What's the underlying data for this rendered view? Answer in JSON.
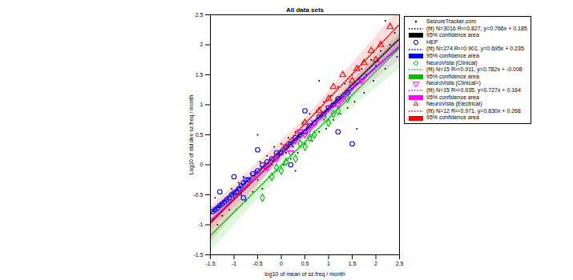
{
  "chart_data": {
    "type": "scatter",
    "title": "All data sets",
    "xlabel": "log10 of mean of sz.freq / month",
    "ylabel": "Log10 of std dev sz.freq / month",
    "xlim": [
      -1.5,
      2.5
    ],
    "ylim": [
      -1.5,
      2.5
    ],
    "xticks": [
      -1.5,
      -1,
      -0.5,
      0,
      0.5,
      1,
      1.5,
      2,
      2.5
    ],
    "yticks": [
      -1.5,
      -1,
      -0.5,
      0,
      0.5,
      1,
      1.5,
      2,
      2.5
    ],
    "grid": false,
    "legend": "right",
    "series": [
      {
        "name": "SeizureTracker.com",
        "type": "scatter",
        "marker": "point",
        "color": "#000000",
        "x": [
          -1.45,
          -1.4,
          -1.35,
          -1.3,
          -1.25,
          -1.2,
          -1.1,
          -1.05,
          -1.0,
          -0.95,
          -0.9,
          -0.85,
          -0.8,
          -0.75,
          -0.7,
          -0.65,
          -0.6,
          -0.55,
          -0.5,
          -0.45,
          -0.4,
          -0.35,
          -0.3,
          -0.25,
          -0.2,
          -0.15,
          -0.1,
          -0.05,
          0.0,
          0.05,
          0.1,
          0.15,
          0.2,
          0.25,
          0.3,
          0.35,
          0.4,
          0.45,
          0.5,
          0.55,
          0.6,
          0.65,
          0.7,
          0.75,
          0.8,
          0.85,
          0.9,
          0.95,
          1.0,
          1.05,
          1.1,
          1.15,
          1.2,
          1.25,
          1.3,
          1.35,
          1.4,
          1.45,
          1.5,
          1.55,
          1.6,
          1.7,
          1.75,
          1.8,
          1.9,
          1.95,
          2.0,
          2.1,
          2.2,
          2.3,
          2.4,
          2.45,
          -1.5,
          0.3,
          1.6,
          -0.5,
          0.8,
          2.2
        ],
        "values": [
          -0.9,
          -0.55,
          -1.0,
          -0.7,
          -0.85,
          -0.6,
          -0.75,
          -0.4,
          -0.55,
          -0.75,
          -0.3,
          -0.5,
          -0.2,
          -0.6,
          -0.35,
          -0.15,
          -0.45,
          -0.1,
          -0.25,
          0.05,
          -0.4,
          -0.05,
          0.15,
          -0.2,
          0.0,
          0.3,
          -0.1,
          0.15,
          0.35,
          0.0,
          0.2,
          0.45,
          0.1,
          0.3,
          0.55,
          0.2,
          0.45,
          0.7,
          0.35,
          0.6,
          0.85,
          0.4,
          0.65,
          0.9,
          0.55,
          0.8,
          1.05,
          0.6,
          0.9,
          1.15,
          0.75,
          1.0,
          1.3,
          0.85,
          1.1,
          1.35,
          0.95,
          1.2,
          1.5,
          1.05,
          1.35,
          1.6,
          1.2,
          1.5,
          1.75,
          1.4,
          1.65,
          1.9,
          1.6,
          2.0,
          2.2,
          1.8,
          -0.7,
          -0.1,
          0.6,
          0.5,
          1.4,
          2.4
        ]
      },
      {
        "name": "(fit) N=3016 R²=0.827, y=0.766x + 0.185",
        "type": "line",
        "line_style": "dotted",
        "color": "#000000",
        "x": [
          -1.5,
          2.5
        ],
        "values": [
          -0.964,
          2.1
        ]
      },
      {
        "name": "95% confidence area",
        "type": "area",
        "color": "#000000",
        "x": [
          -1.5,
          0.5,
          2.5
        ],
        "lower": [
          -1.0,
          0.55,
          2.06
        ],
        "upper": [
          -0.93,
          0.585,
          2.14
        ]
      },
      {
        "name": "HEP",
        "type": "scatter",
        "marker": "circle",
        "color": "#0000ff",
        "x": [
          -1.45,
          -1.4,
          -1.35,
          -1.3,
          -1.25,
          -1.2,
          -1.15,
          -1.1,
          -1.05,
          -1.0,
          -0.95,
          -0.9,
          -0.85,
          -0.8,
          -0.75,
          -0.7,
          -0.6,
          -0.5,
          -0.4,
          -0.3,
          -0.2,
          -0.1,
          0.0,
          0.1,
          0.2,
          0.3,
          0.4,
          0.5,
          0.6,
          0.7,
          0.8,
          0.9,
          1.0,
          1.1,
          1.2,
          1.4,
          1.5,
          -1.0,
          -0.8,
          -0.5,
          0.2,
          0.5,
          1.2,
          -1.3
        ],
        "values": [
          -0.78,
          -0.75,
          -0.72,
          -0.68,
          -0.65,
          -0.62,
          -0.58,
          -0.55,
          -0.5,
          -0.47,
          -0.45,
          -0.4,
          -0.35,
          -0.3,
          -0.25,
          -0.25,
          -0.15,
          -0.1,
          0.0,
          0.05,
          0.1,
          0.2,
          0.2,
          0.3,
          0.35,
          0.45,
          0.5,
          0.55,
          0.65,
          0.7,
          0.8,
          0.85,
          0.95,
          1.0,
          1.1,
          1.2,
          0.35,
          -0.2,
          -0.55,
          0.25,
          0.0,
          0.9,
          0.55,
          -0.45
        ]
      },
      {
        "name": "(fit) N=274 R²=0.901, y=0.695x + 0.235",
        "type": "line",
        "line_style": "dotted",
        "color": "#0000ff",
        "x": [
          -1.5,
          2.5
        ],
        "values": [
          -0.8075,
          1.9725
        ]
      },
      {
        "name": "95% confidence area",
        "type": "area",
        "color": "#0000ff",
        "x": [
          -1.5,
          0.5,
          2.5
        ],
        "lower": [
          -0.86,
          0.56,
          1.9
        ],
        "upper": [
          -0.77,
          0.6,
          2.05
        ]
      },
      {
        "name": "NeuroVista (Clinical)",
        "type": "scatter",
        "marker": "diamond",
        "color": "#00c000",
        "x": [
          -0.4,
          -0.2,
          0.0,
          0.1,
          0.3,
          0.4,
          0.5,
          0.6,
          0.7,
          0.9,
          1.0,
          1.1,
          1.2,
          1.4,
          -0.1
        ],
        "values": [
          -0.55,
          -0.2,
          -0.1,
          0.05,
          0.1,
          0.35,
          0.3,
          0.45,
          0.5,
          0.8,
          0.7,
          0.85,
          0.9,
          1.1,
          -0.05
        ]
      },
      {
        "name": "(fit) N=15 R²=0.911, y=0.782x + -0.008",
        "type": "line",
        "line_style": "dotted",
        "color": "#00c000",
        "x": [
          -1.5,
          2.5
        ],
        "values": [
          -1.181,
          1.947
        ]
      },
      {
        "name": "95% confidence area",
        "type": "area",
        "color": "#00c000",
        "x": [
          -1.5,
          0.5,
          2.5
        ],
        "lower": [
          -1.45,
          0.3,
          1.6
        ],
        "upper": [
          -0.9,
          0.47,
          2.3
        ]
      },
      {
        "name": "NeuroVista (Clinical=)",
        "type": "scatter",
        "marker": "triangle-down",
        "color": "#ff00ff",
        "x": [
          -0.3,
          -0.1,
          0.1,
          0.2,
          0.3,
          0.5,
          0.6,
          0.7,
          0.9,
          1.0,
          1.2,
          1.3,
          1.5,
          1.7,
          0.4
        ],
        "values": [
          -0.05,
          0.1,
          0.3,
          0.2,
          0.4,
          0.5,
          0.6,
          0.7,
          0.85,
          0.95,
          1.0,
          1.1,
          1.3,
          1.4,
          0.55
        ]
      },
      {
        "name": "(fit) N=15 R²=0.935, y=0.727x + 0.164",
        "type": "line",
        "line_style": "dotted",
        "color": "#ff00ff",
        "x": [
          -1.5,
          2.5
        ],
        "values": [
          -0.9265,
          1.9815
        ]
      },
      {
        "name": "95% confidence area",
        "type": "area",
        "color": "#ff00ff",
        "x": [
          -1.5,
          0.5,
          2.5
        ],
        "lower": [
          -1.1,
          0.46,
          1.75
        ],
        "upper": [
          -0.75,
          0.6,
          2.2
        ]
      },
      {
        "name": "NeuroVista (Electrical)",
        "type": "scatter",
        "marker": "triangle",
        "color": "#ff0000",
        "x": [
          1.3,
          1.5,
          1.9,
          2.0,
          2.3,
          1.6,
          0.8,
          1.0,
          0.5,
          1.1,
          2.1,
          1.75
        ],
        "values": [
          1.5,
          1.4,
          1.9,
          1.75,
          2.3,
          1.6,
          0.9,
          1.1,
          0.7,
          1.3,
          2.0,
          1.7
        ]
      },
      {
        "name": "(fit) N=12 R²=0.971, y=0.830x + 0.268",
        "type": "line",
        "line_style": "dotted",
        "color": "#ff0000",
        "x": [
          -1.5,
          2.5
        ],
        "values": [
          -0.977,
          2.343
        ]
      },
      {
        "name": "95% confidence area",
        "type": "area",
        "color": "#ff0000",
        "x": [
          -1.5,
          0.5,
          2.5
        ],
        "lower": [
          -1.3,
          0.6,
          1.95
        ],
        "upper": [
          -0.7,
          0.77,
          2.6
        ]
      }
    ]
  }
}
